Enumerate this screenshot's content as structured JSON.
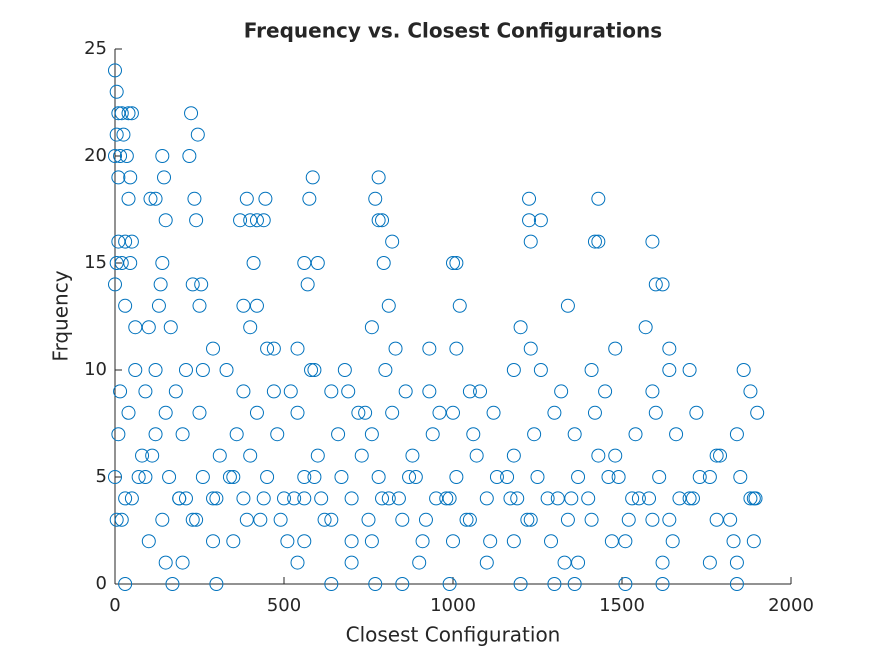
{
  "chart_data": {
    "type": "scatter",
    "title": "Frequency vs. Closest Configurations",
    "x_label": "Closest Configuration",
    "y_label": "Frquency",
    "color": "#0072bd",
    "xlim": [
      0,
      2000
    ],
    "xticks": [
      0,
      500,
      1000,
      1500,
      2000
    ],
    "ylim": [
      0,
      25
    ],
    "yticks": [
      0,
      5,
      10,
      15,
      20,
      25
    ],
    "x": [
      0,
      5,
      10,
      20,
      40,
      50,
      5,
      25,
      0,
      15,
      35,
      10,
      45,
      225,
      245,
      220,
      140,
      145,
      585,
      780,
      1430,
      1225,
      390,
      445,
      575,
      770,
      105,
      120,
      40,
      235,
      10,
      30,
      50,
      140,
      150,
      240,
      370,
      400,
      420,
      440,
      780,
      790,
      1225,
      1260,
      1590,
      5,
      20,
      45,
      135,
      230,
      255,
      410,
      380,
      560,
      570,
      600,
      795,
      820,
      1000,
      1010,
      1230,
      1420,
      1430,
      1600,
      1620,
      0,
      30,
      60,
      100,
      130,
      165,
      250,
      290,
      400,
      420,
      450,
      470,
      540,
      580,
      680,
      760,
      810,
      830,
      930,
      1010,
      1020,
      1200,
      1230,
      1340,
      1480,
      1570,
      1640,
      15,
      60,
      90,
      120,
      180,
      210,
      260,
      330,
      380,
      470,
      520,
      590,
      640,
      690,
      740,
      800,
      860,
      930,
      960,
      1050,
      1080,
      1180,
      1260,
      1320,
      1410,
      1450,
      1590,
      1640,
      1700,
      1860,
      1880,
      10,
      40,
      80,
      120,
      150,
      200,
      250,
      310,
      360,
      420,
      480,
      540,
      600,
      660,
      720,
      760,
      820,
      880,
      940,
      1000,
      1060,
      1120,
      1180,
      1240,
      1300,
      1360,
      1420,
      1480,
      1540,
      1600,
      1660,
      1720,
      1780,
      1840,
      1900,
      0,
      30,
      70,
      110,
      160,
      210,
      260,
      300,
      350,
      400,
      450,
      500,
      560,
      610,
      670,
      730,
      780,
      840,
      890,
      950,
      1010,
      1070,
      1130,
      1190,
      1250,
      1310,
      1370,
      1430,
      1490,
      1550,
      1610,
      1670,
      1730,
      1790,
      1850,
      1895,
      5,
      50,
      90,
      140,
      190,
      240,
      290,
      340,
      390,
      440,
      490,
      530,
      590,
      640,
      700,
      750,
      810,
      870,
      920,
      980,
      1040,
      1100,
      1160,
      1220,
      1280,
      1340,
      1400,
      1460,
      1520,
      1580,
      1640,
      1700,
      1760,
      1820,
      1880,
      20,
      100,
      190,
      230,
      290,
      380,
      430,
      510,
      560,
      620,
      700,
      790,
      850,
      910,
      990,
      1050,
      1110,
      1170,
      1230,
      1290,
      1350,
      1410,
      1470,
      1530,
      1590,
      1650,
      1710,
      1780,
      1830,
      1890,
      150,
      200,
      350,
      540,
      560,
      700,
      760,
      900,
      1000,
      1100,
      1180,
      1330,
      1370,
      1510,
      1620,
      1760,
      1840,
      1890,
      30,
      170,
      300,
      640,
      770,
      850,
      990,
      1200,
      1300,
      1360,
      1510,
      1620,
      1840
    ],
    "values": [
      24,
      23,
      22,
      22,
      22,
      22,
      21,
      21,
      20,
      20,
      20,
      19,
      19,
      22,
      21,
      20,
      20,
      19,
      19,
      19,
      18,
      18,
      18,
      18,
      18,
      18,
      18,
      18,
      18,
      18,
      16,
      16,
      16,
      15,
      17,
      17,
      17,
      17,
      17,
      17,
      17,
      17,
      17,
      17,
      16,
      15,
      15,
      15,
      14,
      14,
      14,
      15,
      13,
      15,
      14,
      15,
      15,
      16,
      15,
      15,
      16,
      16,
      16,
      14,
      14,
      14,
      13,
      12,
      12,
      13,
      12,
      13,
      11,
      12,
      13,
      11,
      11,
      11,
      10,
      10,
      12,
      13,
      11,
      11,
      11,
      13,
      12,
      11,
      13,
      11,
      12,
      11,
      9,
      10,
      9,
      10,
      9,
      10,
      10,
      10,
      9,
      9,
      9,
      10,
      9,
      9,
      8,
      10,
      9,
      9,
      8,
      9,
      9,
      10,
      10,
      9,
      10,
      9,
      9,
      10,
      10,
      10,
      9,
      7,
      8,
      6,
      7,
      8,
      7,
      8,
      6,
      7,
      8,
      7,
      8,
      6,
      7,
      8,
      7,
      8,
      6,
      7,
      8,
      7,
      8,
      6,
      7,
      8,
      7,
      8,
      6,
      7,
      8,
      7,
      8,
      6,
      7,
      8,
      5,
      4,
      5,
      6,
      5,
      4,
      5,
      4,
      5,
      6,
      5,
      4,
      5,
      4,
      5,
      6,
      5,
      4,
      5,
      4,
      5,
      6,
      5,
      4,
      5,
      4,
      5,
      6,
      5,
      4,
      5,
      4,
      5,
      6,
      5,
      4,
      3,
      4,
      5,
      3,
      4,
      3,
      4,
      5,
      3,
      4,
      3,
      4,
      5,
      3,
      4,
      3,
      4,
      5,
      3,
      4,
      3,
      4,
      5,
      3,
      4,
      3,
      4,
      5,
      3,
      4,
      3,
      4,
      5,
      3,
      4,
      3,
      2,
      4,
      3,
      2,
      4,
      3,
      2,
      4,
      3,
      2,
      4,
      3,
      2,
      4,
      3,
      2,
      4,
      3,
      2,
      4,
      3,
      2,
      4,
      3,
      2,
      4,
      3,
      2,
      4,
      1,
      1,
      2,
      1,
      2,
      1,
      2,
      1,
      2,
      1,
      2,
      1,
      1,
      2,
      1,
      1,
      1,
      2,
      0,
      0,
      0,
      0,
      0,
      0,
      0,
      0,
      0,
      0,
      0,
      0,
      0
    ]
  }
}
